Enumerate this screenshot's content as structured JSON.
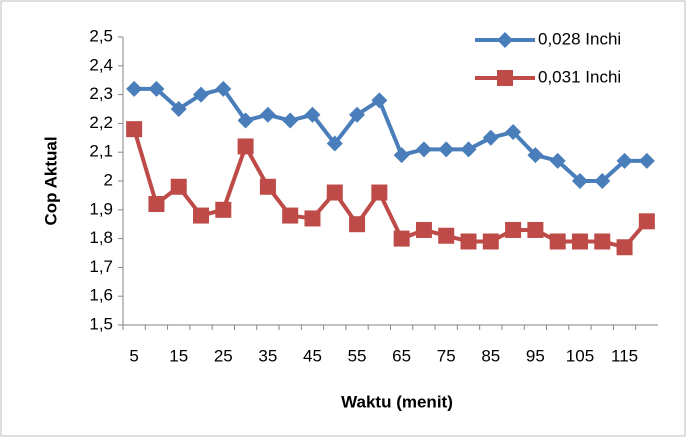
{
  "chart_data": {
    "type": "line",
    "x_label": "Waktu (menit)",
    "y_label": "Cop Aktual",
    "categories": [
      5,
      null,
      15,
      null,
      25,
      null,
      35,
      null,
      45,
      null,
      55,
      null,
      65,
      null,
      75,
      null,
      85,
      null,
      95,
      null,
      105,
      null,
      115,
      null
    ],
    "series": [
      {
        "name": "0,028 Inchi",
        "color": "#4a7ebb",
        "marker": "diamond",
        "values": [
          2.32,
          2.32,
          2.25,
          2.3,
          2.32,
          2.21,
          2.23,
          2.21,
          2.23,
          2.13,
          2.23,
          2.28,
          2.09,
          2.11,
          2.11,
          2.11,
          2.15,
          2.17,
          2.09,
          2.07,
          2.0,
          2.0,
          2.07,
          2.07
        ]
      },
      {
        "name": "0,031 Inchi",
        "color": "#be4b48",
        "marker": "square",
        "values": [
          2.18,
          1.92,
          1.98,
          1.88,
          1.9,
          2.12,
          1.98,
          1.88,
          1.87,
          1.96,
          1.85,
          1.96,
          1.8,
          1.83,
          1.81,
          1.79,
          1.79,
          1.83,
          1.83,
          1.79,
          1.79,
          1.79,
          1.77,
          1.86
        ]
      }
    ],
    "ylim": [
      1.5,
      2.5
    ],
    "yticks": [
      {
        "value": 1.5,
        "label": "1,5"
      },
      {
        "value": 1.6,
        "label": "1,6"
      },
      {
        "value": 1.7,
        "label": "1,7"
      },
      {
        "value": 1.8,
        "label": "1,8"
      },
      {
        "value": 1.9,
        "label": "1,9"
      },
      2,
      {
        "value": 2.1,
        "label": "2,1"
      },
      {
        "value": 2.2,
        "label": "2,2"
      },
      {
        "value": 2.3,
        "label": "2,3"
      },
      {
        "value": 2.4,
        "label": "2,4"
      },
      {
        "value": 2.5,
        "label": "2,5"
      }
    ],
    "grid": false,
    "legend": "top-right"
  }
}
